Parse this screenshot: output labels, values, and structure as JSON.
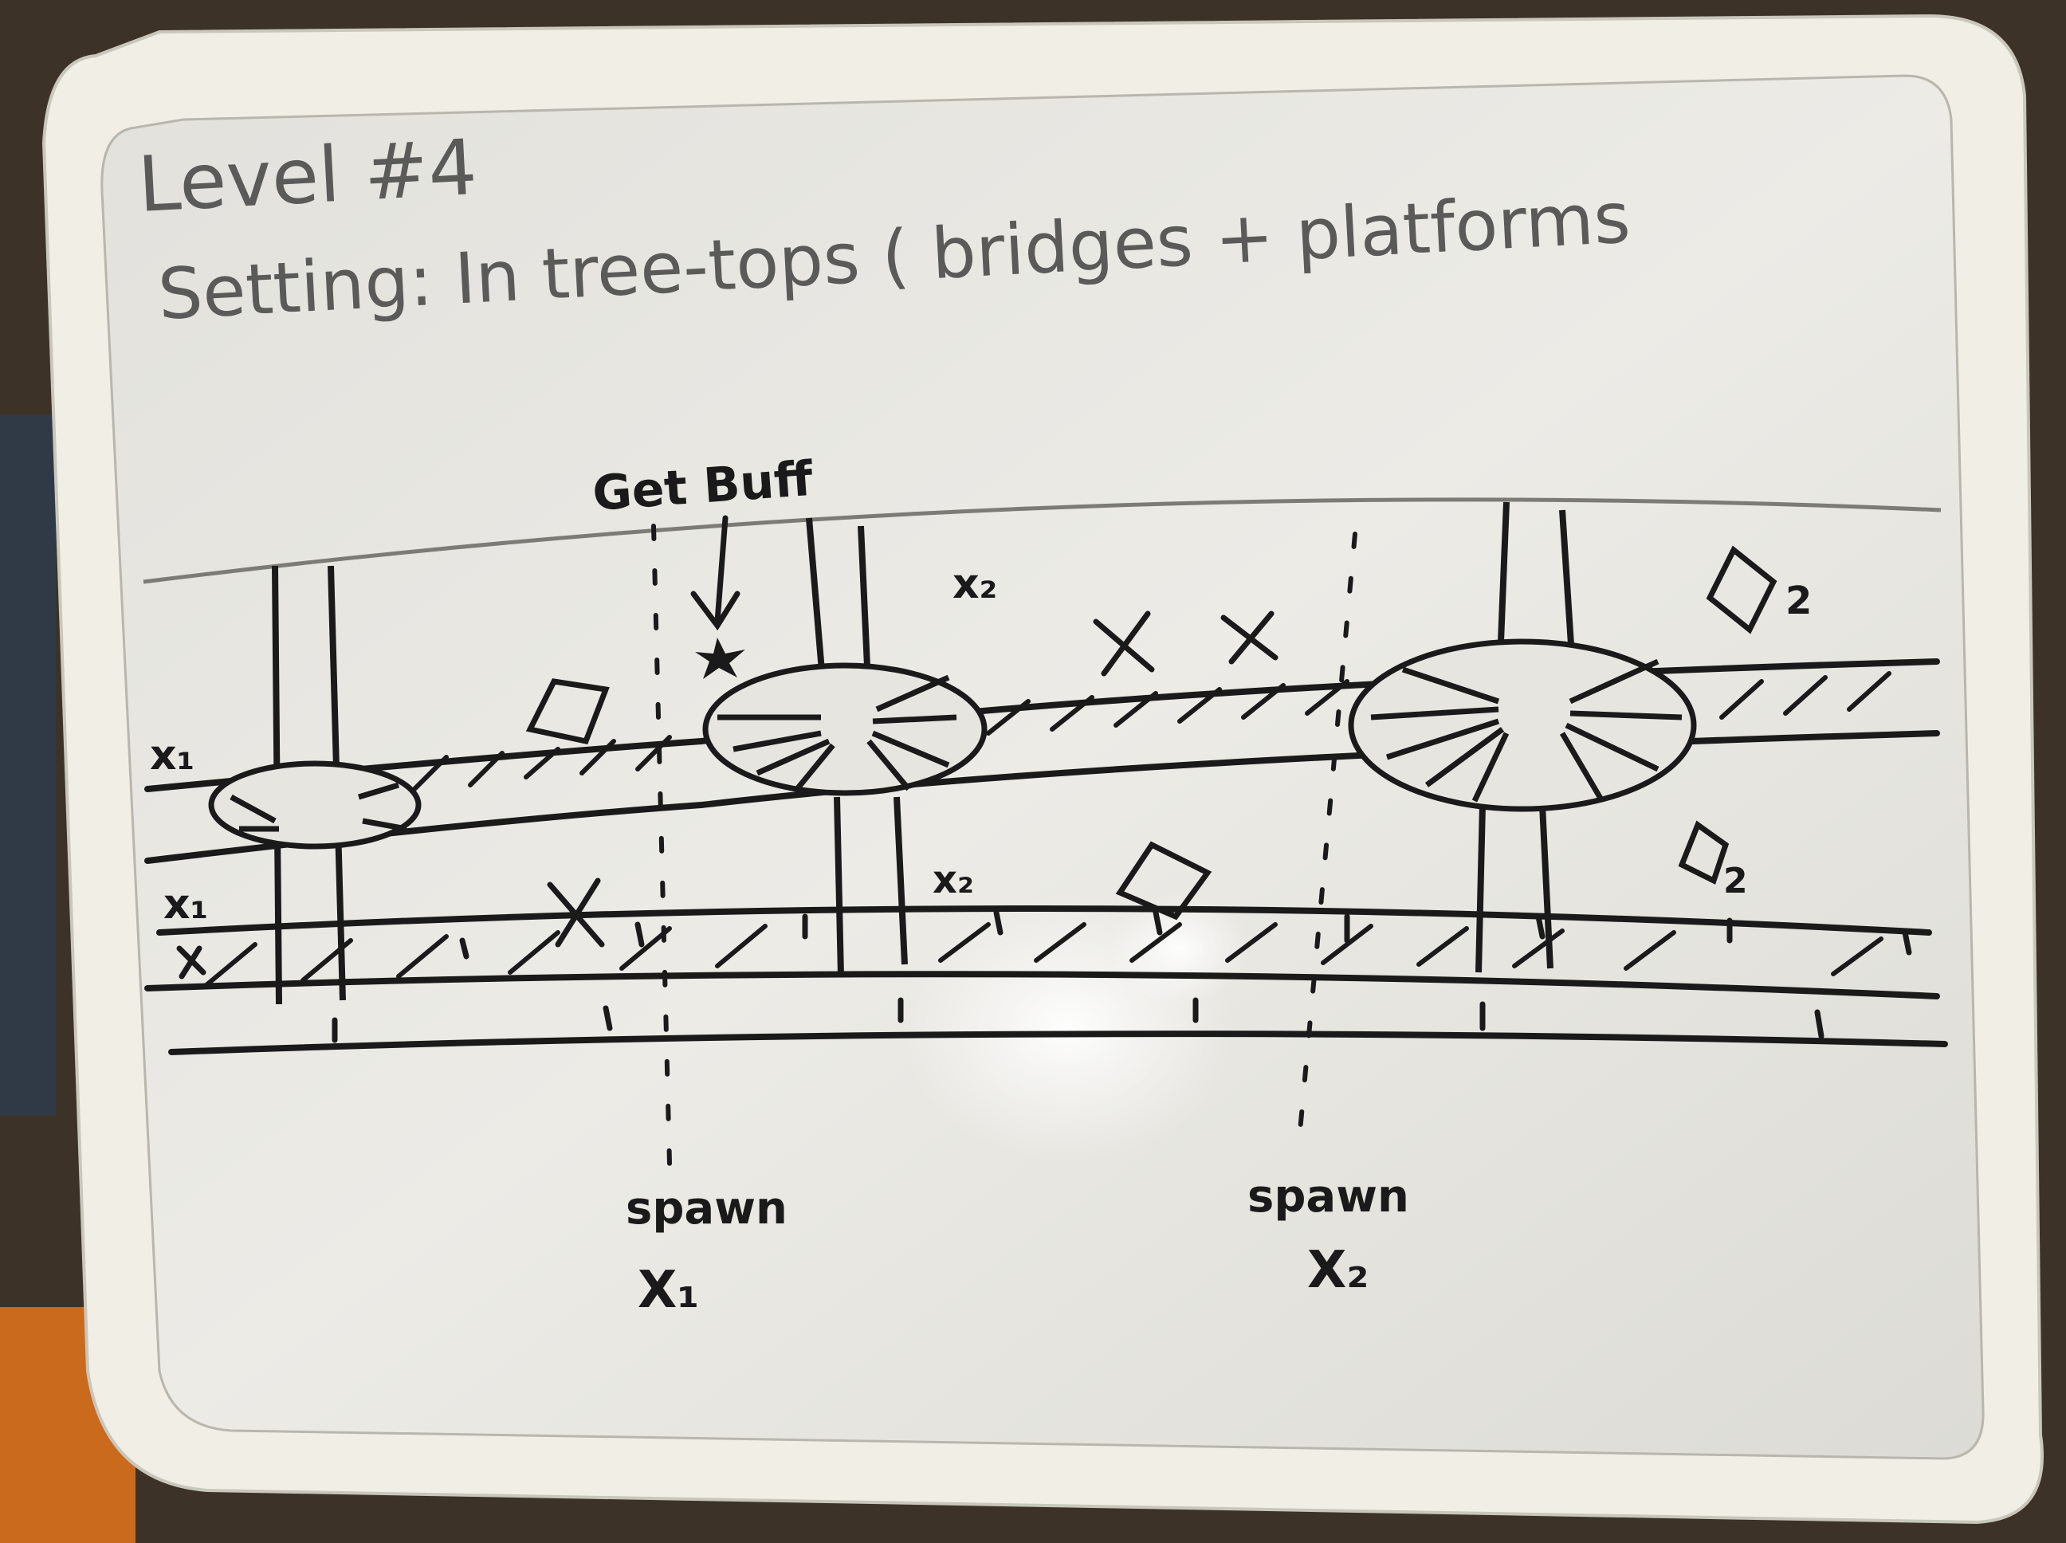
{
  "title": "Level #4",
  "setting": "Setting: In tree-tops ( bridges + platforms",
  "annotation_get_buff": "Get Buff",
  "spawn_label_left": "spawn",
  "spawn_id_left": "X₁",
  "spawn_label_right": "spawn",
  "spawn_id_right": "X₂",
  "labels": {
    "x1_upper": "x₁",
    "x1_lower": "x₁",
    "x2_upper": "x₂",
    "x2_middle": "x₂",
    "box2_upper": "2",
    "box2_lower": "2"
  },
  "colors": {
    "board": "#e9e8e3",
    "frame": "#f1efe6",
    "ink": "#1a1a1a",
    "faded_ink": "#5a5a58",
    "background": "#3a3026"
  }
}
